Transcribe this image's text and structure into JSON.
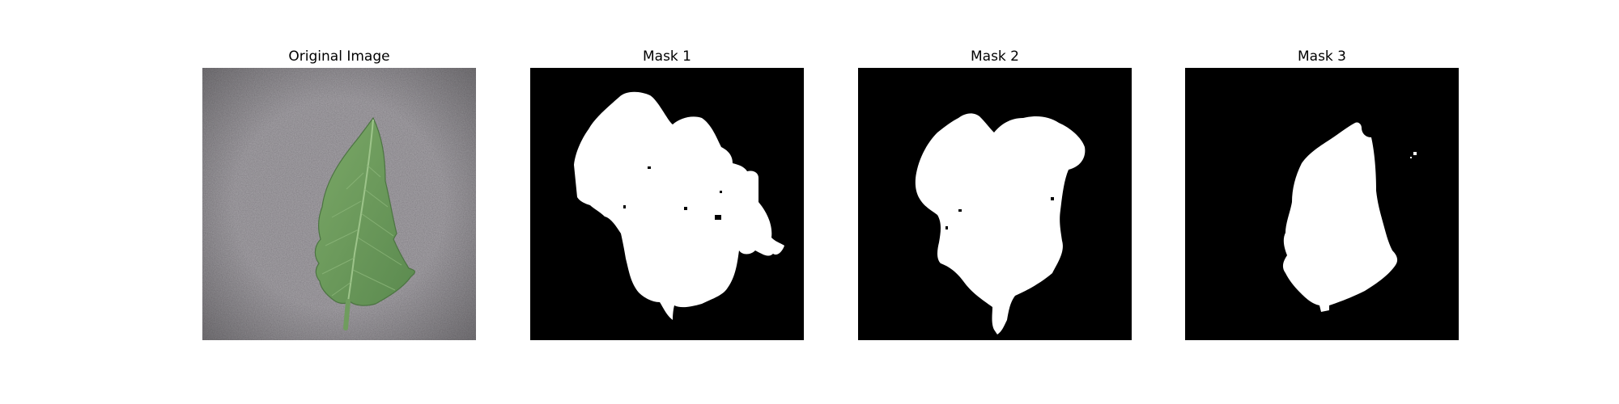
{
  "figure": {
    "panels": [
      {
        "title": "Original Image",
        "kind": "photo",
        "subject": "green-leaf-on-gray"
      },
      {
        "title": "Mask 1",
        "kind": "mask"
      },
      {
        "title": "Mask 2",
        "kind": "mask"
      },
      {
        "title": "Mask 3",
        "kind": "mask"
      }
    ]
  },
  "colors": {
    "background": "#ffffff",
    "mask_bg": "#000000",
    "mask_fg": "#ffffff",
    "leaf": "#6e9a5c",
    "leaf_dark": "#4f7a45",
    "surface": "#7e7a80"
  }
}
